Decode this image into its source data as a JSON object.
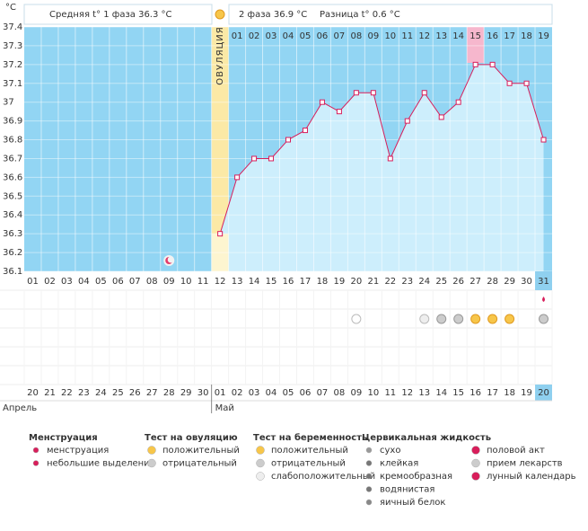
{
  "header": {
    "phase1": "Средняя t° 1 фаза 36.3 °C",
    "phase2": "2 фаза 36.9 °C",
    "difference": "Разница t° 0.6 °C"
  },
  "chart_data": {
    "type": "line",
    "y_label": "°C",
    "ovulation_label": "ОВУЛЯЦИЯ",
    "categories": [
      "01",
      "02",
      "03",
      "04",
      "05",
      "06",
      "07",
      "08",
      "09",
      "10",
      "11",
      "12",
      "13",
      "14",
      "15",
      "16",
      "17",
      "18",
      "19",
      "20",
      "21",
      "22",
      "23",
      "24",
      "25",
      "26",
      "27",
      "28",
      "29",
      "30",
      "31"
    ],
    "series": [
      {
        "color": "#d81e5b",
        "values": [
          null,
          null,
          null,
          null,
          null,
          null,
          null,
          null,
          null,
          null,
          null,
          36.3,
          36.6,
          36.7,
          36.7,
          36.8,
          36.85,
          37.0,
          36.95,
          37.05,
          37.05,
          36.7,
          36.9,
          37.05,
          36.92,
          37.0,
          37.2,
          37.2,
          37.1,
          37.1,
          36.8
        ]
      }
    ],
    "ylim": [
      36.1,
      37.4
    ],
    "yticks": [
      36.1,
      36.2,
      36.3,
      36.4,
      36.5,
      36.6,
      36.7,
      36.8,
      36.9,
      37,
      37.1,
      37.2,
      37.3,
      37.4
    ],
    "grid": true,
    "phase2_days": [
      "01",
      "02",
      "03",
      "04",
      "05",
      "06",
      "07",
      "08",
      "09",
      "10",
      "11",
      "12",
      "13",
      "14",
      "15",
      "16",
      "17",
      "18",
      "19"
    ]
  },
  "calendar": {
    "months": [
      "Апрель",
      "Май"
    ],
    "dates": [
      {
        "label": "20",
        "weekend": true
      },
      {
        "label": "21",
        "weekend": false
      },
      {
        "label": "22",
        "weekend": false
      },
      {
        "label": "23",
        "weekend": false
      },
      {
        "label": "24",
        "weekend": false
      },
      {
        "label": "25",
        "weekend": false
      },
      {
        "label": "26",
        "weekend": true
      },
      {
        "label": "27",
        "weekend": true
      },
      {
        "label": "28",
        "weekend": false
      },
      {
        "label": "29",
        "weekend": false
      },
      {
        "label": "30",
        "weekend": false
      },
      {
        "label": "01",
        "weekend": false
      },
      {
        "label": "02",
        "weekend": false
      },
      {
        "label": "03",
        "weekend": true
      },
      {
        "label": "04",
        "weekend": true
      },
      {
        "label": "05",
        "weekend": false
      },
      {
        "label": "06",
        "weekend": false
      },
      {
        "label": "07",
        "weekend": false
      },
      {
        "label": "08",
        "weekend": false
      },
      {
        "label": "09",
        "weekend": false
      },
      {
        "label": "10",
        "weekend": true
      },
      {
        "label": "11",
        "weekend": true
      },
      {
        "label": "12",
        "weekend": false
      },
      {
        "label": "13",
        "weekend": false
      },
      {
        "label": "14",
        "weekend": false
      },
      {
        "label": "15",
        "weekend": false
      },
      {
        "label": "16",
        "weekend": false
      },
      {
        "label": "17",
        "weekend": true
      },
      {
        "label": "18",
        "weekend": true
      },
      {
        "label": "19",
        "weekend": false
      },
      {
        "label": "20",
        "weekend": false
      }
    ]
  },
  "legend": {
    "groups": [
      {
        "title": "Менструация",
        "items": [
          "менструация",
          "небольшие выделения"
        ]
      },
      {
        "title": "Тест на овуляцию",
        "items": [
          "положительный",
          "отрицательный"
        ]
      },
      {
        "title": "Тест на беременность",
        "items": [
          "положительный",
          "отрицательный",
          "слабоположительный"
        ]
      },
      {
        "title": "Цервикальная жидкость",
        "items": [
          "сухо",
          "клейкая",
          "кремообразная",
          "водянистая",
          "яичный белок"
        ]
      },
      {
        "items": [
          "половой акт",
          "прием лекарств",
          "лунный календарь"
        ]
      }
    ]
  }
}
